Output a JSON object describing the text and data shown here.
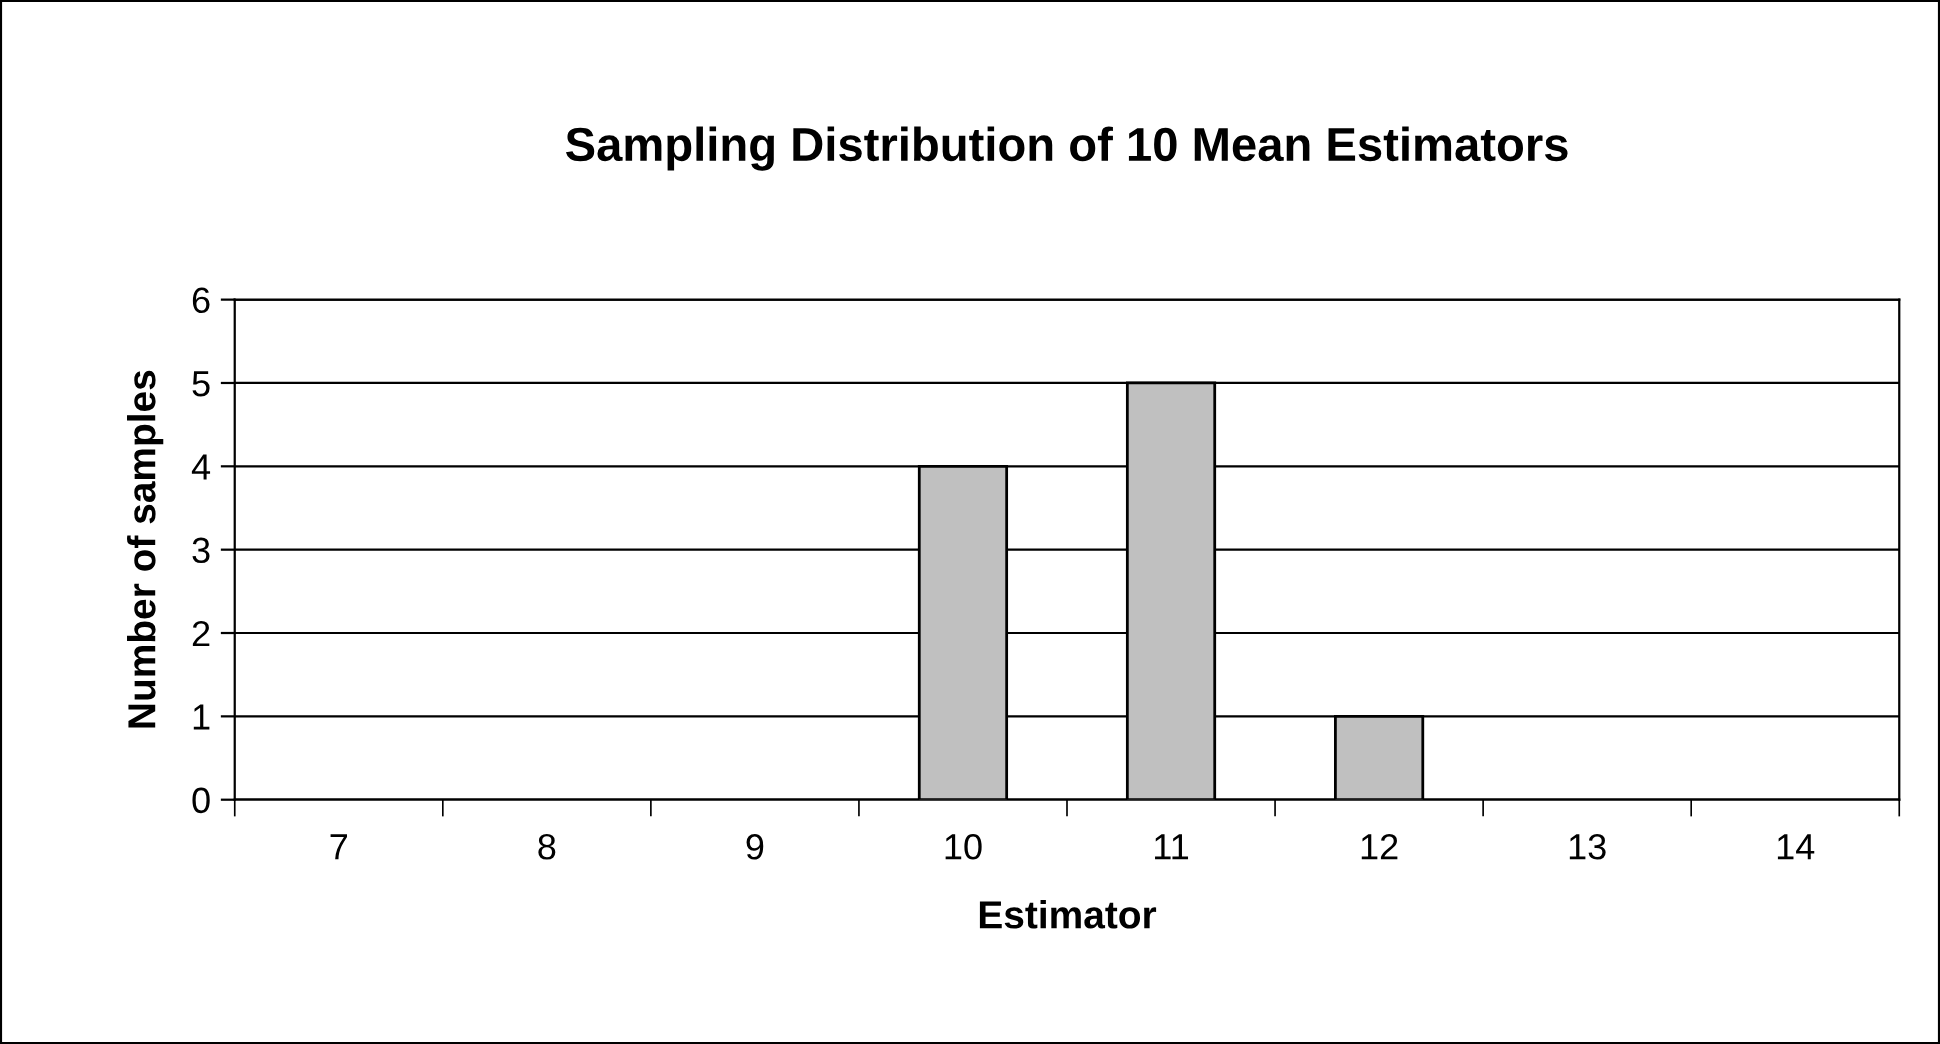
{
  "chart_data": {
    "type": "bar",
    "title": "Sampling Distribution of 10 Mean Estimators",
    "xlabel": "Estimator",
    "ylabel": "Number of samples",
    "categories": [
      "7",
      "8",
      "9",
      "10",
      "11",
      "12",
      "13",
      "14"
    ],
    "values": [
      0,
      0,
      0,
      4,
      5,
      1,
      0,
      0
    ],
    "color": "#c0c0c0",
    "ylim": [
      0,
      6
    ],
    "yticks": [
      0,
      1,
      2,
      3,
      4,
      5,
      6
    ],
    "grid": "y"
  }
}
